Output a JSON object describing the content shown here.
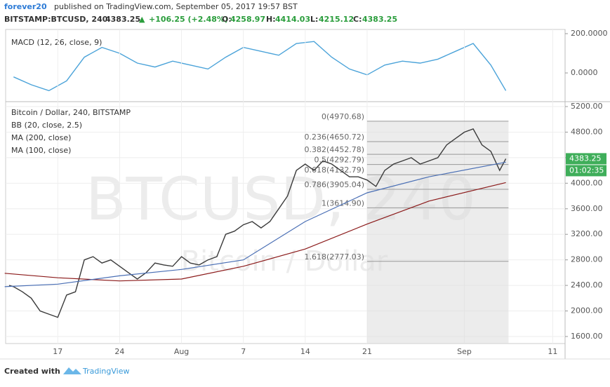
{
  "header": {
    "author": "forever20",
    "published": "published on TradingView.com, September 05, 2017 19:57 BST",
    "symbol": "BITSTAMP:BTCUSD, 240",
    "price": "4383.25",
    "arrow": "▲",
    "change": "+106.25 (+2.48%)",
    "open_label": "O:",
    "open": "4258.97",
    "high_label": "H:",
    "high": "4414.03",
    "low_label": "L:",
    "low": "4215.12",
    "close_label": "C:",
    "close": "4383.25"
  },
  "footer": {
    "created": "Created with",
    "brand": "TradingView"
  },
  "chart_data": [
    {
      "type": "line",
      "title": "MACD (12, 26, close, 9)",
      "ylim": [
        -139,
        210.7
      ],
      "yticks": [
        {
          "value": 200,
          "label": "200.0000"
        },
        {
          "value": 0,
          "label": "0.0000"
        }
      ],
      "xlim": [
        11.1,
        74.4
      ],
      "series": [
        {
          "name": "MACD (12, 26, close, 9)",
          "color": "#4ba3d9",
          "x": [
            12,
            14,
            16,
            18,
            20,
            22,
            24,
            26,
            28,
            30,
            32,
            34,
            36,
            38,
            40,
            42,
            44,
            46,
            48,
            50,
            52,
            54,
            56,
            58,
            60,
            62,
            64,
            66,
            67.7
          ],
          "values": [
            -20,
            -60,
            -90,
            -40,
            80,
            130,
            100,
            50,
            30,
            60,
            40,
            20,
            80,
            130,
            110,
            90,
            150,
            160,
            80,
            20,
            -10,
            40,
            60,
            50,
            70,
            110,
            150,
            40,
            -90
          ]
        }
      ]
    },
    {
      "type": "line",
      "title": "Bitcoin / Dollar, 240, BITSTAMP",
      "indicator": "BB (20, close, 2.5)",
      "watermark": "BTCUSD, 240",
      "watermark_sub": "Bitcoin / Dollar",
      "countdown": "01:02:35",
      "last_price": 4383.25,
      "ylim": [
        1490,
        5277
      ],
      "yticks": [
        {
          "value": 1600,
          "label": "1600.00"
        },
        {
          "value": 2000,
          "label": "2000.00"
        },
        {
          "value": 2400,
          "label": "2400.00"
        },
        {
          "value": 2800,
          "label": "2800.00"
        },
        {
          "value": 3200,
          "label": "3200.00"
        },
        {
          "value": 3600,
          "label": "3600.00"
        },
        {
          "value": 4000,
          "label": "4000.00"
        },
        {
          "value": 4400,
          "label": "4400.00"
        },
        {
          "value": 4800,
          "label": "4800.00"
        },
        {
          "value": 5200,
          "label": "5200.00"
        }
      ],
      "xlim": [
        11.1,
        74.4
      ],
      "xticks": [
        {
          "value": 17,
          "label": "17"
        },
        {
          "value": 24,
          "label": "24"
        },
        {
          "value": 31,
          "label": "Aug"
        },
        {
          "value": 38,
          "label": "7"
        },
        {
          "value": 45,
          "label": "14"
        },
        {
          "value": 52,
          "label": "21"
        },
        {
          "value": 63,
          "label": "Sep"
        },
        {
          "value": 73,
          "label": "11"
        }
      ],
      "grid": true,
      "fib_levels": [
        {
          "value": 4970.68,
          "label": "0(4970.68)"
        },
        {
          "value": 4650.72,
          "label": "0.236(4650.72)"
        },
        {
          "value": 4452.78,
          "label": "0.382(4452.78)"
        },
        {
          "value": 4292.79,
          "label": "0.5(4292.79)"
        },
        {
          "value": 4132.79,
          "label": "0.618(4132.79)"
        },
        {
          "value": 3905.04,
          "label": "0.786(3905.04)"
        },
        {
          "value": 3614.9,
          "label": "1(3614.90)"
        },
        {
          "value": 2777.03,
          "label": "1.618(2777.03)"
        }
      ],
      "series": [
        {
          "name": "Bitcoin / Dollar, 240, BITSTAMP",
          "color": "#3a3a3a",
          "x": [
            11.5,
            12,
            13,
            14,
            15,
            16,
            17,
            18,
            19,
            20,
            21,
            22,
            23,
            24,
            25,
            26,
            27,
            28,
            29,
            30,
            31,
            32,
            33,
            34,
            35,
            36,
            37,
            38,
            39,
            40,
            41,
            42,
            43,
            44,
            45,
            46,
            47,
            48,
            49,
            50,
            51,
            52,
            53,
            54,
            55,
            56,
            57,
            58,
            59,
            60,
            61,
            62,
            63,
            64,
            65,
            66,
            67,
            67.7
          ],
          "values": [
            2400,
            2380,
            2300,
            2200,
            2000,
            1950,
            1900,
            2250,
            2300,
            2800,
            2850,
            2750,
            2800,
            2700,
            2600,
            2500,
            2600,
            2750,
            2720,
            2700,
            2850,
            2750,
            2720,
            2800,
            2850,
            3200,
            3250,
            3350,
            3400,
            3300,
            3400,
            3600,
            3800,
            4200,
            4300,
            4200,
            4350,
            4300,
            4200,
            4100,
            4100,
            4050,
            3950,
            4200,
            4300,
            4350,
            4400,
            4300,
            4350,
            4400,
            4600,
            4700,
            4800,
            4850,
            4600,
            4500,
            4200,
            4383
          ]
        },
        {
          "name": "MA (200, close)",
          "color": "#8b1a1a",
          "x": [
            11,
            17,
            24,
            31,
            38,
            45,
            52,
            59,
            67.7
          ],
          "values": [
            2590,
            2520,
            2470,
            2500,
            2700,
            2970,
            3360,
            3720,
            4010
          ]
        },
        {
          "name": "MA (100, close)",
          "color": "#4a6fb5",
          "x": [
            11,
            17,
            24,
            31,
            38,
            45,
            52,
            59,
            67.7
          ],
          "values": [
            2380,
            2420,
            2550,
            2650,
            2800,
            3400,
            3850,
            4100,
            4330
          ]
        }
      ]
    }
  ]
}
